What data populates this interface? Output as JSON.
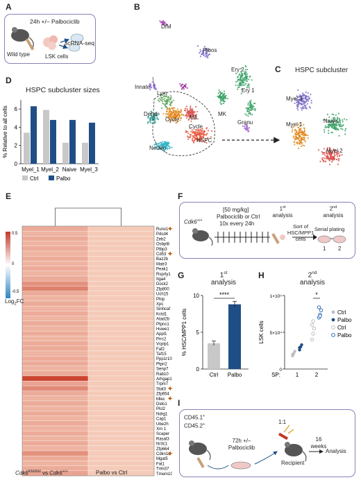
{
  "panels": {
    "A": {
      "letter": "A",
      "treatment": "24h +/– Palbociclib",
      "mouse": "Wild type",
      "cells": "LSK cells",
      "assay": "scRNA-seq",
      "border_color": "#8a80b8"
    },
    "B": {
      "letter": "B",
      "clusters": [
        "D/M",
        "Ribos",
        "Innate",
        "Lym",
        "Dendr",
        "Cycle",
        "M/L",
        "Cycle",
        "MK",
        "HSPC",
        "Neutro",
        "Ery 2",
        "Ery 1",
        "Granu"
      ]
    },
    "C": {
      "letter": "C",
      "title": "HSPC subcluster",
      "clusters": [
        "Myel 3",
        "Naive",
        "Myel 1",
        "Myel 2"
      ]
    },
    "D": {
      "letter": "D",
      "title": "HSPC subcluster sizes",
      "ylabel": "% Relative to all cells",
      "legend": [
        "Ctrl",
        "Palbo"
      ]
    },
    "E": {
      "letter": "E",
      "colorbar_title": "Log₂FC",
      "colorbar_ticks": [
        "0.5",
        "0",
        "-0.5"
      ],
      "genes": [
        "Runx1",
        "Pdcd4",
        "Zeb2",
        "Osbpl8",
        "Ptbp3",
        "Cd53",
        "Baz2b",
        "Matr3",
        "Peak1",
        "Rsprty1",
        "Itga4",
        "Dock2",
        "Zfp800",
        "Uch15",
        "Phip",
        "Xpc",
        "Sinhcaf",
        "Kctd1",
        "Atad2b",
        "Ptpnc1",
        "Huwe1",
        "Appl1",
        "Prrc2",
        "Vcpip1",
        "Faf2",
        "Taf15",
        "Ppp1r10",
        "Ptpn2",
        "Senp7",
        "Rab10",
        "Arhgap15",
        "Trpm7",
        "Stat3",
        "Zfp654",
        "Mlec",
        "Dido1",
        "Plcl2",
        "Ndrg1",
        "Cap1",
        "Ube2h",
        "Xrn 1",
        "Scaper",
        "Rasal3",
        "Nr3c1",
        "Zfp664",
        "Cdkn1b",
        "Mgat5",
        "Fat1",
        "Trim37",
        "Tmem106b"
      ],
      "col1_values": [
        0.3,
        0.25,
        0.3,
        0.25,
        0.3,
        0.25,
        0.3,
        0.25,
        0.3,
        0.25,
        0.3,
        0.45,
        0.55,
        0.3,
        0.25,
        0.3,
        0.25,
        0.3,
        0.25,
        0.3,
        0.25,
        0.3,
        0.25,
        0.3,
        0.3,
        0.25,
        0.3,
        0.3,
        0.25,
        0.3,
        0.9,
        0.35,
        0.5,
        0.3,
        0.25,
        0.3,
        0.25,
        0.3,
        0.25,
        0.3,
        0.25,
        0.3,
        0.25,
        0.3,
        0.25,
        0.45,
        0.3,
        0.25,
        0.3,
        0.35
      ],
      "col2_values": [
        0.12,
        0.12,
        0.12,
        0.12,
        0.12,
        0.12,
        0.12,
        0.12,
        0.12,
        0.12,
        0.12,
        0.12,
        0.12,
        0.12,
        0.12,
        0.12,
        0.12,
        0.12,
        0.12,
        0.12,
        0.12,
        0.12,
        0.12,
        0.12,
        0.12,
        0.12,
        0.12,
        0.12,
        0.12,
        0.12,
        0.12,
        0.12,
        0.12,
        0.12,
        0.12,
        0.12,
        0.12,
        0.12,
        0.12,
        0.12,
        0.12,
        0.12,
        0.12,
        0.12,
        0.12,
        0.12,
        0.12,
        0.12,
        0.12,
        0.12
      ],
      "arrow_genes": [
        "Runx1",
        "Cd53",
        "Stat3",
        "Mlec",
        "Cdkn1b"
      ],
      "xlabel_1": "Cdk6KM/KM vs Cdk6+/+",
      "xlabel_1_parts": {
        "a": "Cdk6",
        "b": "KM/KM",
        "c": " vs ",
        "d": "Cdk6",
        "e": "+/+"
      },
      "xlabel_2": "Palbo vs Ctrl",
      "arrow_color": "#b5651d"
    },
    "F": {
      "letter": "F",
      "mouse": "Cdk6+/+",
      "mouse_parts": {
        "a": "Cdk6",
        "b": "+/+"
      },
      "dose": "[50 mg/kg]",
      "drug": "Palbociclib or Ctrl",
      "schedule": "10x every 24h",
      "analysis1_n": "1",
      "analysis1_sup": "st",
      "analysis1_word": "analysis",
      "sort": "Sort of",
      "sort2": "HSC/MPP1",
      "sort3": "cells",
      "analysis2_n": "2",
      "analysis2_sup": "nd",
      "analysis2_word": "analysis",
      "plating": "Serial plating",
      "plate1": "1",
      "plate2": "2"
    },
    "G": {
      "letter": "G",
      "title_n": "1",
      "title_sup": "st",
      "title_word": "analysis",
      "ylabel": "% HSC/MPP1 cells",
      "significance": "****"
    },
    "H": {
      "letter": "H",
      "title_n": "2",
      "title_sup": "nd",
      "title_word": "analysis",
      "ylabel": "LSK cells",
      "yticks": [
        "1×10⁵",
        "5×10⁴",
        "0"
      ],
      "xaxis_label": "SP:",
      "significance": "*",
      "legend": [
        "Ctrl",
        "Palbo",
        "Ctrl",
        "Palbo"
      ]
    },
    "I": {
      "letter": "I",
      "donor1": "CD45.1+",
      "donor1_parts": {
        "a": "CD45.1",
        "b": "+"
      },
      "donor2": "CD45.2+",
      "donor2_parts": {
        "a": "CD45.2",
        "b": "+"
      },
      "treatment1": "72h +/–",
      "treatment2": "Palbociclib",
      "ratio": "1:1",
      "recipient": "Recipient",
      "duration1": "16",
      "duration2": "weeks",
      "analysis": "Analysis"
    }
  },
  "chart_data": [
    {
      "type": "bar",
      "title": "HSPC subcluster sizes",
      "categories": [
        "Myel_1",
        "Myel_2",
        "Naive",
        "Myel_3"
      ],
      "series": [
        {
          "name": "Ctrl",
          "values": [
            3.4,
            5.9,
            2.3,
            2.3
          ],
          "color": "#c8c8c8"
        },
        {
          "name": "Palbo",
          "values": [
            6.3,
            4.8,
            4.8,
            4.5
          ],
          "color": "#1f4e87"
        }
      ],
      "ylabel": "% Relative to all cells",
      "ylim": [
        0,
        7
      ]
    },
    {
      "type": "bar",
      "title": "1st analysis",
      "categories": [
        "Ctrl",
        "Palbo"
      ],
      "values": [
        3.5,
        8.8
      ],
      "errors": [
        0.3,
        0.4
      ],
      "colors": [
        "#c8c8c8",
        "#1f4e87"
      ],
      "ylabel": "% HSC/MPP1 cells",
      "ylim": [
        0,
        10
      ]
    },
    {
      "type": "scatter",
      "title": "2nd analysis",
      "ylabel": "LSK cells",
      "ylim": [
        0,
        100000
      ],
      "yticks": [
        0,
        50000,
        100000
      ],
      "xticks": [
        "1",
        "2"
      ],
      "series": [
        {
          "name": "Ctrl",
          "plate": 1,
          "values": [
            18000,
            21000,
            24000,
            20000
          ],
          "style": "filled",
          "color": "#bdbdbd"
        },
        {
          "name": "Palbo",
          "plate": 1,
          "values": [
            26000,
            30000,
            33000,
            29000
          ],
          "style": "filled",
          "color": "#1f4e87"
        },
        {
          "name": "Ctrl",
          "plate": 2,
          "values": [
            40000,
            48000,
            55000,
            60000,
            65000
          ],
          "style": "open",
          "color": "#bdbdbd"
        },
        {
          "name": "Palbo",
          "plate": 2,
          "values": [
            70000,
            74000,
            80000,
            84000,
            72000
          ],
          "style": "open",
          "color": "#2e6fb5"
        }
      ]
    }
  ]
}
